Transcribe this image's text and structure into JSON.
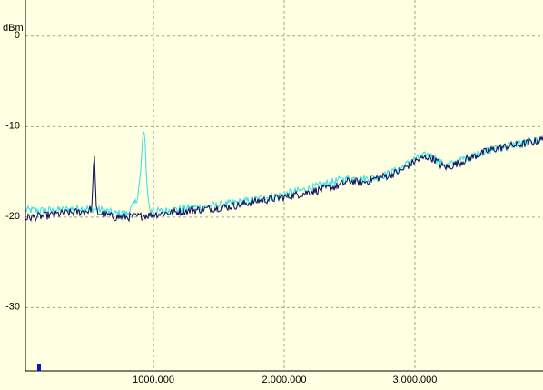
{
  "chart_data": {
    "type": "line",
    "ylabel": "dBm",
    "xlabel": "",
    "xlim": [
      20,
      3980
    ],
    "ylim": [
      -37,
      4
    ],
    "grid": true,
    "xticks": [
      {
        "value": 1000,
        "label": "1000.000"
      },
      {
        "value": 2000,
        "label": "2.000.000"
      },
      {
        "value": 3000,
        "label": "3.000.000"
      }
    ],
    "yticks": [
      {
        "value": 0,
        "label": "0"
      },
      {
        "value": -10,
        "label": "-10"
      },
      {
        "value": -20,
        "label": "-20"
      },
      {
        "value": -30,
        "label": "-30"
      }
    ],
    "series": [
      {
        "color": "#0a0a5a",
        "x": [
          20,
          150,
          300,
          450,
          500,
          530,
          545,
          560,
          575,
          600,
          700,
          800,
          900,
          1000,
          1200,
          1400,
          1600,
          1800,
          2000,
          2200,
          2400,
          2500,
          2600,
          2700,
          2800,
          2900,
          3000,
          3100,
          3150,
          3200,
          3250,
          3300,
          3400,
          3500,
          3600,
          3700,
          3800,
          3900,
          3980
        ],
        "y": [
          -20.1,
          -19.9,
          -19.6,
          -19.4,
          -19.3,
          -19.0,
          -12.0,
          -19.0,
          -19.6,
          -19.6,
          -20.0,
          -20.0,
          -19.9,
          -19.7,
          -19.4,
          -19.1,
          -18.8,
          -18.2,
          -17.8,
          -17.2,
          -16.6,
          -16.0,
          -16.2,
          -15.7,
          -15.4,
          -14.8,
          -13.8,
          -13.3,
          -13.6,
          -14.3,
          -14.5,
          -14.2,
          -13.6,
          -13.0,
          -12.5,
          -12.2,
          -12.0,
          -11.7,
          -11.4
        ]
      },
      {
        "color": "#33dde8",
        "x": [
          20,
          150,
          300,
          450,
          600,
          700,
          800,
          870,
          900,
          920,
          935,
          950,
          970,
          1000,
          1100,
          1200,
          1400,
          1600,
          1800,
          2000,
          2200,
          2400,
          2500,
          2600,
          2700,
          2800,
          2900,
          3000,
          3100,
          3150,
          3200,
          3250,
          3300,
          3400,
          3500,
          3600,
          3700,
          3800,
          3900,
          3980
        ],
        "y": [
          -19.2,
          -19.3,
          -19.2,
          -19.0,
          -19.2,
          -19.6,
          -19.6,
          -18.2,
          -15.5,
          -10.5,
          -11.5,
          -16.5,
          -19.2,
          -19.4,
          -19.3,
          -19.1,
          -18.8,
          -18.5,
          -18.0,
          -17.5,
          -16.8,
          -16.0,
          -15.7,
          -15.8,
          -15.6,
          -15.2,
          -14.5,
          -13.6,
          -13.1,
          -13.4,
          -14.0,
          -14.3,
          -14.0,
          -13.4,
          -12.9,
          -12.5,
          -12.1,
          -11.9,
          -11.6,
          -11.3
        ]
      }
    ]
  }
}
